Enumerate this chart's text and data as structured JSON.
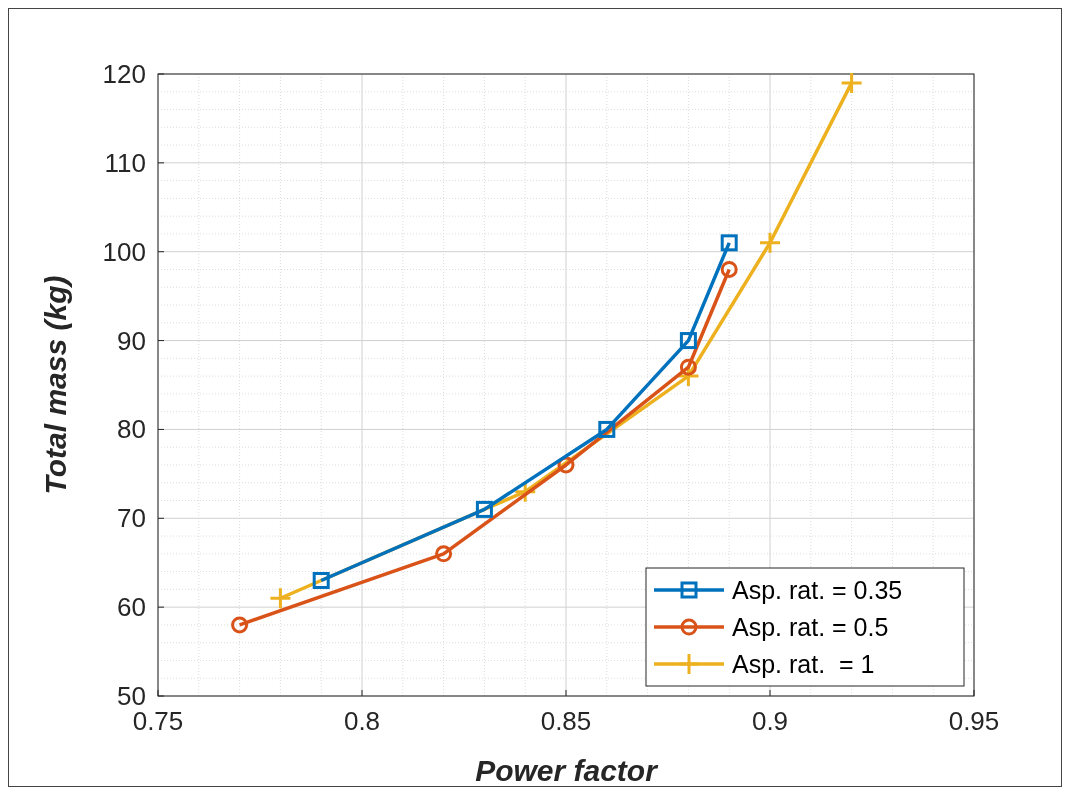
{
  "chart_data": {
    "type": "line",
    "xlabel": "Power factor",
    "ylabel": "Total mass (kg)",
    "xlim": [
      0.75,
      0.95
    ],
    "xticks": [
      0.75,
      0.8,
      0.85,
      0.9,
      0.95
    ],
    "ylim": [
      50,
      120
    ],
    "yticks": [
      50,
      60,
      70,
      80,
      90,
      100,
      110,
      120
    ],
    "grid": true,
    "legend": "bottom right",
    "series": [
      {
        "name": "Asp. rat. = 0.35",
        "color": "#0072bd",
        "marker": "square",
        "x": [
          0.79,
          0.83,
          0.86,
          0.88,
          0.89
        ],
        "values": [
          63,
          71,
          80,
          90,
          101
        ]
      },
      {
        "name": "Asp. rat. = 0.5",
        "color": "#d95319",
        "marker": "circle",
        "x": [
          0.77,
          0.82,
          0.85,
          0.88,
          0.89
        ],
        "values": [
          58,
          66,
          76,
          87,
          98
        ]
      },
      {
        "name": "Asp. rat.  = 1",
        "color": "#edb120",
        "marker": "cross",
        "x": [
          0.78,
          0.84,
          0.88,
          0.9,
          0.92
        ],
        "values": [
          61,
          73,
          86,
          101,
          119
        ]
      }
    ]
  }
}
